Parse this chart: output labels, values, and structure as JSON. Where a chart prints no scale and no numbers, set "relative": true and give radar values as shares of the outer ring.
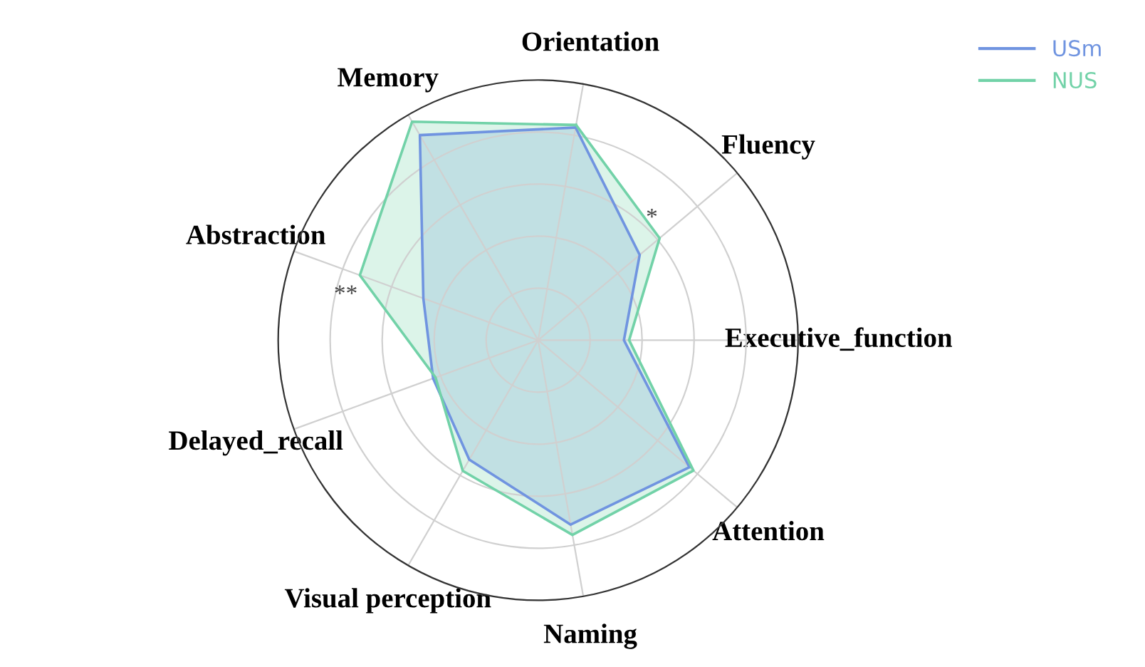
{
  "chart_data": {
    "type": "radar",
    "relative": true,
    "categories": [
      "Orientation",
      "Fluency",
      "Executive_function",
      "Attention",
      "Naming",
      "Visual perception",
      "Delayed_recall",
      "Abstraction",
      "Memory"
    ],
    "series": [
      {
        "name": "USm",
        "color": "#7094e0",
        "values": [
          0.83,
          0.51,
          0.33,
          0.76,
          0.72,
          0.53,
          0.43,
          0.47,
          0.91
        ]
      },
      {
        "name": "NUS",
        "color": "#72d2a8",
        "values": [
          0.84,
          0.61,
          0.35,
          0.78,
          0.76,
          0.58,
          0.42,
          0.73,
          0.97
        ]
      }
    ],
    "annotations": [
      {
        "text": "*",
        "x": "Fluency"
      },
      {
        "text": "**",
        "x": "Abstraction"
      }
    ],
    "grid": true,
    "legend": "top right"
  }
}
